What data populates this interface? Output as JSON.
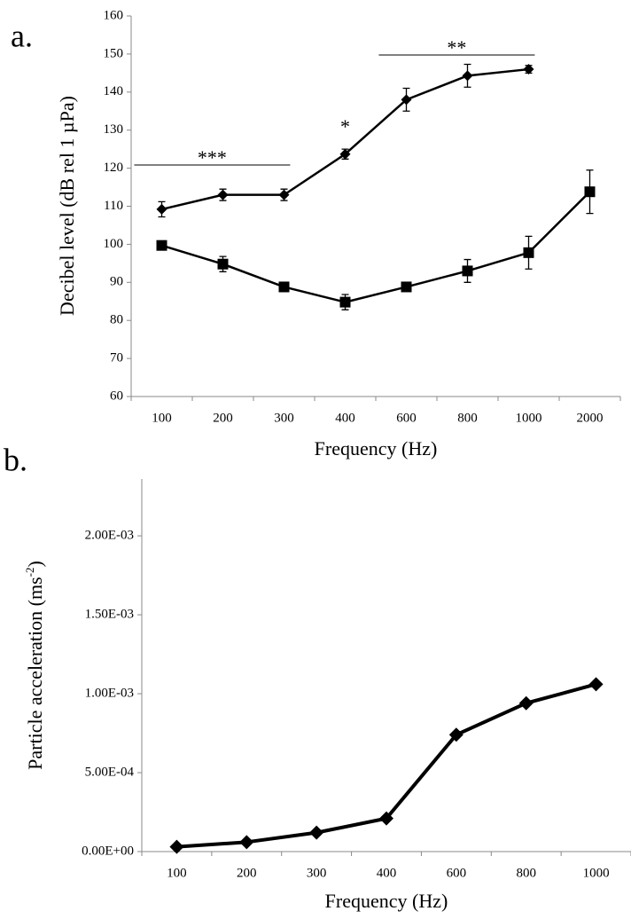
{
  "chart_data": [
    {
      "type": "line",
      "panel_label": "a.",
      "y_label": "Decibel level (dB rel 1 µPa)",
      "x_label": "Frequency (Hz)",
      "categories": [
        "100",
        "200",
        "300",
        "400",
        "600",
        "800",
        "1000",
        "2000"
      ],
      "series": [
        {
          "color": "#000000",
          "marker": "diamond",
          "values": [
            109.2,
            113,
            113,
            123.7,
            138,
            144.3,
            146,
            null
          ],
          "errors": [
            2,
            1.5,
            1.5,
            1.3,
            3,
            3,
            1,
            null
          ]
        },
        {
          "color": "#000000",
          "marker": "square",
          "values": [
            99.7,
            94.8,
            88.8,
            84.8,
            88.8,
            93,
            97.8,
            113.8
          ],
          "errors": [
            1,
            2,
            1.2,
            2,
            1,
            3,
            4.3,
            5.7
          ]
        }
      ],
      "annotations": [
        {
          "text": "***"
        },
        {
          "text": "*"
        },
        {
          "text": "**"
        }
      ],
      "ylim": [
        60,
        160
      ],
      "yticks": [
        60,
        70,
        80,
        90,
        100,
        110,
        120,
        130,
        140,
        150,
        160
      ],
      "grid": false
    },
    {
      "type": "line",
      "panel_label": "b.",
      "y_label": {
        "text": "Particle acceleration (ms",
        "superscript": "-2",
        "suffix": ")"
      },
      "x_label": "Frequency (Hz)",
      "categories": [
        "100",
        "200",
        "300",
        "400",
        "600",
        "800",
        "1000"
      ],
      "series": [
        {
          "color": "#000000",
          "marker": "diamond",
          "values": [
            3e-05,
            6e-05,
            0.00012,
            0.00021,
            0.00074,
            0.00094,
            0.00106
          ]
        }
      ],
      "ylim": [
        0,
        0.00236
      ],
      "yticks": [
        {
          "value": 0,
          "label": "0.00E+00"
        },
        {
          "value": 0.0005,
          "label": "5.00E-04"
        },
        {
          "value": 0.001,
          "label": "1.00E-03"
        },
        {
          "value": 0.0015,
          "label": "1.50E-03"
        },
        {
          "value": 0.002,
          "label": "2.00E-03"
        }
      ],
      "grid": false
    }
  ]
}
